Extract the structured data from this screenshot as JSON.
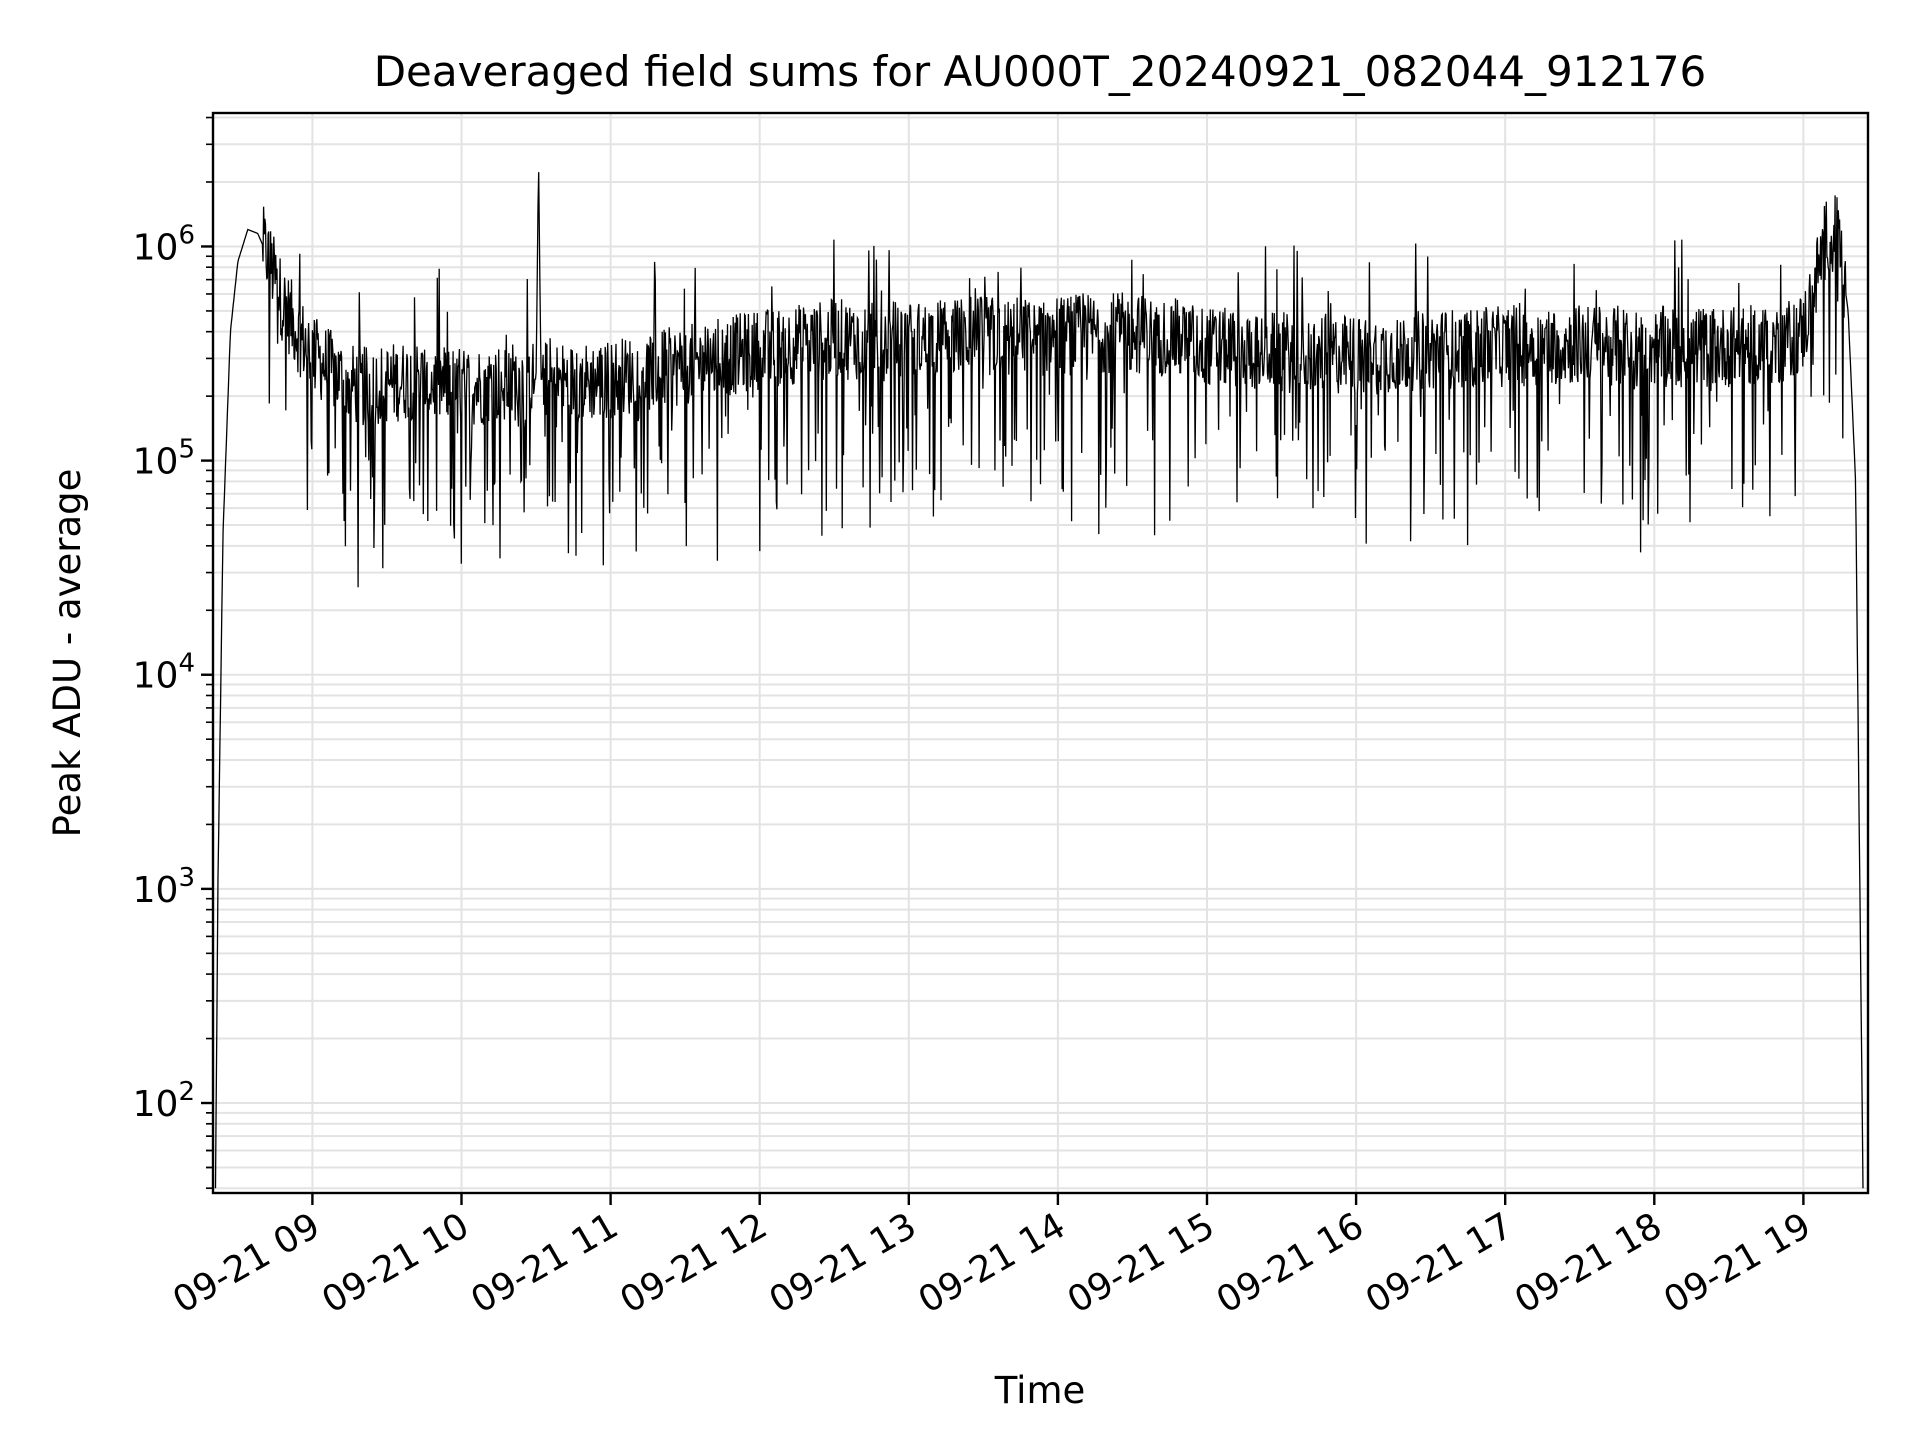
{
  "chart_data": {
    "type": "line",
    "title": "Deaveraged field sums for AU000T_20240921_082044_912176",
    "xlabel": "Time",
    "ylabel": "Peak ADU - average",
    "yscale": "log",
    "ylim": [
      38,
      4200000
    ],
    "xlim": [
      "2024-09-21 08:20",
      "2024-09-21 19:26"
    ],
    "grid": true,
    "grid_minor": true,
    "legend": "none",
    "line_color": "#000000",
    "x_ticks": [
      "09-21 09",
      "09-21 10",
      "09-21 11",
      "09-21 12",
      "09-21 13",
      "09-21 14",
      "09-21 15",
      "09-21 16",
      "09-21 17",
      "09-21 18",
      "09-21 19"
    ],
    "y_tick_base": "10",
    "y_ticks": [
      {
        "value": 100,
        "exponent": "2"
      },
      {
        "value": 1000,
        "exponent": "3"
      },
      {
        "value": 10000,
        "exponent": "4"
      },
      {
        "value": 100000,
        "exponent": "5"
      },
      {
        "value": 1000000,
        "exponent": "6"
      }
    ],
    "series": [
      {
        "x": [
          "2024-09-21 08:21",
          "2024-09-21 08:22",
          "2024-09-21 08:24",
          "2024-09-21 08:27",
          "2024-09-21 08:30",
          "2024-09-21 08:34",
          "2024-09-21 08:38",
          "2024-09-21 08:42",
          "2024-09-21 08:48",
          "2024-09-21 08:55",
          "2024-09-21 09:02",
          "2024-09-21 09:10",
          "2024-09-21 09:15",
          "2024-09-21 09:20",
          "2024-09-21 09:30",
          "2024-09-21 09:40",
          "2024-09-21 09:50",
          "2024-09-21 10:00",
          "2024-09-21 10:15",
          "2024-09-21 10:30",
          "2024-09-21 10:31",
          "2024-09-21 10:32",
          "2024-09-21 10:45",
          "2024-09-21 11:00",
          "2024-09-21 11:30",
          "2024-09-21 12:00",
          "2024-09-21 12:30",
          "2024-09-21 13:00",
          "2024-09-21 13:30",
          "2024-09-21 14:00",
          "2024-09-21 14:20",
          "2024-09-21 14:45",
          "2024-09-21 15:00",
          "2024-09-21 15:30",
          "2024-09-21 16:00",
          "2024-09-21 16:30",
          "2024-09-21 17:00",
          "2024-09-21 17:30",
          "2024-09-21 18:00",
          "2024-09-21 18:30",
          "2024-09-21 18:50",
          "2024-09-21 19:00",
          "2024-09-21 19:05",
          "2024-09-21 19:10",
          "2024-09-21 19:14",
          "2024-09-21 19:18",
          "2024-09-21 19:21",
          "2024-09-21 19:23",
          "2024-09-21 19:24"
        ],
        "y": [
          40,
          1100,
          45000,
          400000,
          850000,
          1200000,
          1150000,
          900000,
          550000,
          380000,
          300000,
          250000,
          230000,
          220000,
          230000,
          240000,
          230000,
          220000,
          230000,
          240000,
          2500000,
          240000,
          230000,
          240000,
          280000,
          330000,
          370000,
          360000,
          380000,
          380000,
          400000,
          380000,
          340000,
          320000,
          310000,
          330000,
          340000,
          350000,
          340000,
          340000,
          350000,
          400000,
          700000,
          1200000,
          1100000,
          500000,
          80000,
          500,
          40
        ]
      }
    ]
  }
}
